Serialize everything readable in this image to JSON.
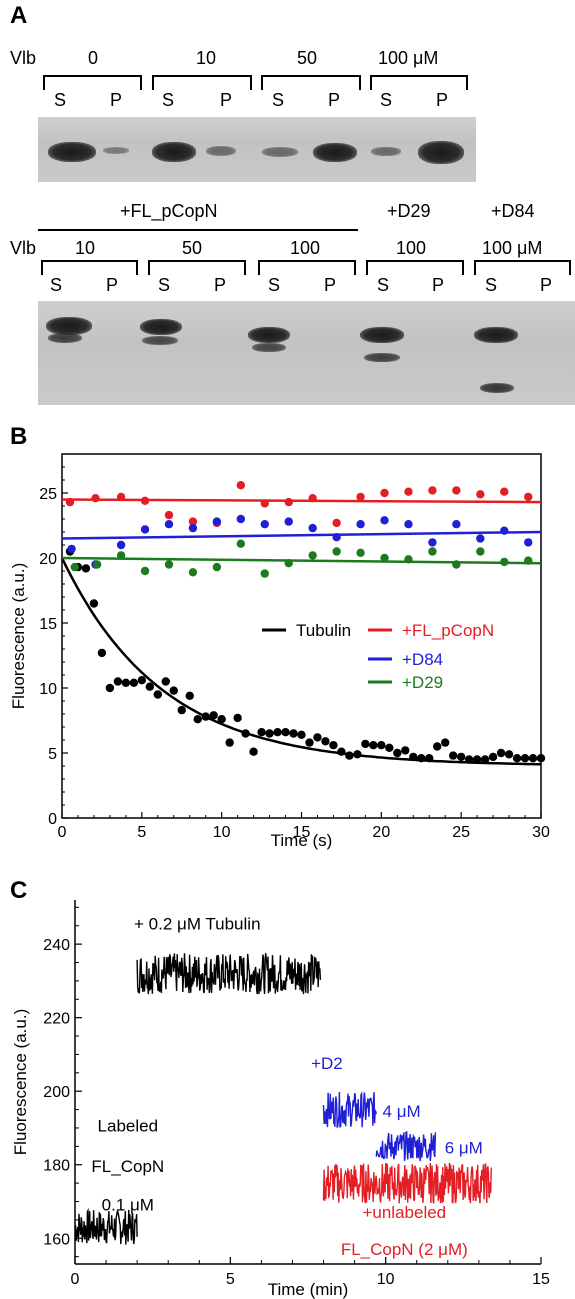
{
  "panels": {
    "a": "A",
    "b": "B",
    "c": "C"
  },
  "panel_a": {
    "top": {
      "vlb_label": "Vlb",
      "concentrations": [
        "0",
        "10",
        "50",
        "100 μM"
      ],
      "lanes": [
        "S",
        "P",
        "S",
        "P",
        "S",
        "P",
        "S",
        "P"
      ]
    },
    "bottom": {
      "fl_label": "+FL_pCopN",
      "d29_label": "+D29",
      "d84_label": "+D84",
      "vlb_label": "Vlb",
      "concentrations": [
        "10",
        "50",
        "100",
        "100",
        "100 μM"
      ],
      "lanes": [
        "S",
        "P",
        "S",
        "P",
        "S",
        "P",
        "S",
        "P",
        "S",
        "P"
      ]
    }
  },
  "colors": {
    "tubulin": "#000000",
    "fl": "#e31e24",
    "d84": "#1f1fd6",
    "d29": "#1e7a1e"
  },
  "chart_data": [
    {
      "type": "scatter",
      "xlabel": "Time (s)",
      "ylabel": "Fluorescence (a.u.)",
      "xlim": [
        0,
        30
      ],
      "ylim": [
        0,
        28
      ],
      "xticks": [
        "0",
        "5",
        "10",
        "15",
        "20",
        "25",
        "30"
      ],
      "yticks": [
        "0",
        "5",
        "10",
        "15",
        "20",
        "25"
      ],
      "legend_position": "center-right",
      "series": [
        {
          "name": "Tubulin",
          "color": "#000000",
          "x": [
            0.5,
            1.0,
            1.5,
            2.0,
            2.5,
            3.0,
            3.5,
            4.0,
            4.5,
            5.0,
            5.5,
            6.0,
            6.5,
            7.0,
            7.5,
            8.0,
            8.5,
            9.0,
            9.5,
            10.0,
            10.5,
            11.0,
            11.5,
            12.0,
            12.5,
            13.0,
            13.5,
            14.0,
            14.5,
            15.0,
            15.5,
            16.0,
            16.5,
            17.0,
            17.5,
            18.0,
            18.5,
            19.0,
            19.5,
            20.0,
            20.5,
            21.0,
            21.5,
            22.0,
            22.5,
            23.0,
            23.5,
            24.0,
            24.5,
            25.0,
            25.5,
            26.0,
            26.5,
            27.0,
            27.5,
            28.0,
            28.5,
            29.0,
            29.5,
            30.0
          ],
          "y": [
            20.5,
            19.3,
            19.2,
            16.5,
            12.7,
            10.0,
            10.5,
            10.4,
            10.4,
            10.6,
            10.1,
            9.5,
            10.5,
            9.8,
            8.3,
            9.4,
            7.6,
            7.8,
            7.9,
            7.6,
            5.8,
            7.7,
            6.5,
            5.1,
            6.6,
            6.5,
            6.6,
            6.6,
            6.5,
            6.4,
            5.8,
            6.2,
            5.9,
            5.6,
            5.1,
            4.8,
            4.9,
            5.7,
            5.6,
            5.6,
            5.4,
            5.0,
            5.2,
            4.7,
            4.6,
            4.6,
            5.5,
            5.8,
            4.8,
            4.7,
            4.5,
            4.5,
            4.5,
            4.7,
            5.0,
            4.9,
            4.6,
            4.6,
            4.6,
            4.6
          ],
          "fit": {
            "model": "exponential decay",
            "start": 20.0,
            "plateau": 4.0,
            "rate": 0.16
          }
        },
        {
          "name": "+FL_pCopN",
          "color": "#e31e24",
          "x": [
            0.5,
            2.1,
            3.7,
            5.2,
            6.7,
            8.2,
            9.7,
            11.2,
            12.7,
            14.2,
            15.7,
            17.2,
            18.7,
            20.2,
            21.7,
            23.2,
            24.7,
            26.2,
            27.7,
            29.2
          ],
          "y": [
            24.3,
            24.6,
            24.7,
            24.4,
            23.3,
            22.8,
            22.7,
            25.6,
            24.2,
            24.3,
            24.6,
            22.7,
            24.7,
            25.0,
            25.1,
            25.2,
            25.2,
            24.9,
            25.1,
            24.7
          ],
          "fit": {
            "model": "linear",
            "y0": 24.5,
            "y30": 24.3
          }
        },
        {
          "name": "+D84",
          "color": "#1f1fd6",
          "x": [
            0.6,
            2.1,
            3.7,
            5.2,
            6.7,
            8.2,
            9.7,
            11.2,
            12.7,
            14.2,
            15.7,
            17.2,
            18.7,
            20.2,
            21.7,
            23.2,
            24.7,
            26.2,
            27.7,
            29.2
          ],
          "y": [
            20.7,
            19.5,
            21.0,
            22.2,
            22.6,
            22.3,
            22.8,
            23.0,
            22.6,
            22.8,
            22.3,
            21.6,
            22.6,
            22.9,
            22.6,
            21.2,
            22.6,
            21.5,
            22.1,
            21.2
          ],
          "fit": {
            "model": "linear",
            "y0": 21.5,
            "y30": 22.0
          }
        },
        {
          "name": "+D29",
          "color": "#1e7a1e",
          "x": [
            0.8,
            2.2,
            3.7,
            5.2,
            6.7,
            8.2,
            9.7,
            11.2,
            12.7,
            14.2,
            15.7,
            17.2,
            18.7,
            20.2,
            21.7,
            23.2,
            24.7,
            26.2,
            27.7,
            29.2
          ],
          "y": [
            19.3,
            19.5,
            20.2,
            19.0,
            19.5,
            18.9,
            19.3,
            21.1,
            18.8,
            19.6,
            20.2,
            20.5,
            20.4,
            20.0,
            19.9,
            20.5,
            19.5,
            20.5,
            19.7,
            19.8
          ],
          "fit": {
            "model": "linear",
            "y0": 20.0,
            "y30": 19.6
          }
        }
      ]
    },
    {
      "type": "line",
      "xlabel": "Time (min)",
      "ylabel": "Fluorescence (a.u.)",
      "xlim": [
        0,
        15
      ],
      "ylim": [
        153,
        252
      ],
      "xticks": [
        "0",
        "5",
        "10",
        "15"
      ],
      "yticks": [
        "160",
        "180",
        "200",
        "220",
        "240"
      ],
      "series": [
        {
          "name": "Labeled FL_CopN 0.1 μM",
          "color": "#000000",
          "x_range": [
            0,
            2.0
          ],
          "level": 163,
          "noise": 6
        },
        {
          "name": "+ 0.2 μM Tubulin",
          "color": "#000000",
          "x_range": [
            2.0,
            7.9
          ],
          "level": 232,
          "noise": 7
        },
        {
          "name": "+D2 4 μM",
          "color": "#1f1fd6",
          "x_range": [
            8.0,
            9.7
          ],
          "level": 195,
          "noise": 6
        },
        {
          "name": "6 μM",
          "color": "#1f1fd6",
          "x_range": [
            9.7,
            11.6
          ],
          "level": 185,
          "noise": 5
        },
        {
          "name": "+unlabeled FL_CopN (2 μM)",
          "color": "#e31e24",
          "x_range": [
            8.0,
            13.4
          ],
          "level": 175,
          "noise": 7
        }
      ],
      "annotations": {
        "tubulin": "+ 0.2 μM Tubulin",
        "d2": "+D2",
        "d2_4": "4 μM",
        "d2_6": "6 μM",
        "labeled_1": "Labeled",
        "labeled_2": "FL_CopN",
        "labeled_3": "0.1 μM",
        "unlabeled_1": "+unlabeled",
        "unlabeled_2": "FL_CopN (2 μM)"
      }
    }
  ]
}
